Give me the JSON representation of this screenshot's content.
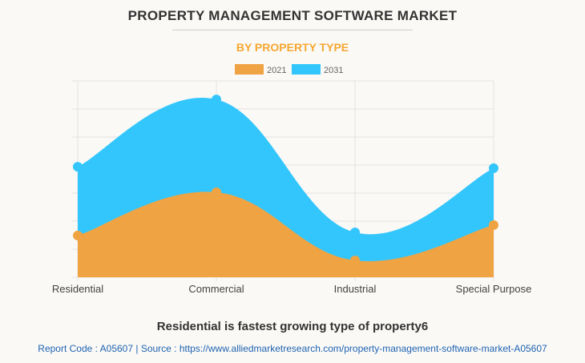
{
  "title": "PROPERTY MANAGEMENT SOFTWARE MARKET",
  "subtitle": "BY PROPERTY TYPE",
  "caption": "Residential is fastest growing type of property6",
  "footer": "Report Code : A05607  |  Source : https://www.alliedmarketresearch.com/property-management-software-market-A05607",
  "chart_data": {
    "type": "area",
    "categories": [
      "Residential",
      "Commercial",
      "Industrial",
      "Special Purpose"
    ],
    "series": [
      {
        "name": "2021",
        "color": "#f0a342",
        "values": [
          1.49,
          3.03,
          0.6,
          1.86
        ]
      },
      {
        "name": "2031",
        "color": "#33c6fc",
        "values": [
          3.94,
          6.34,
          1.6,
          3.89
        ]
      }
    ],
    "ylim": [
      0,
      7
    ],
    "grid": true,
    "y_tick_labels_shown": false,
    "legend": "top"
  }
}
